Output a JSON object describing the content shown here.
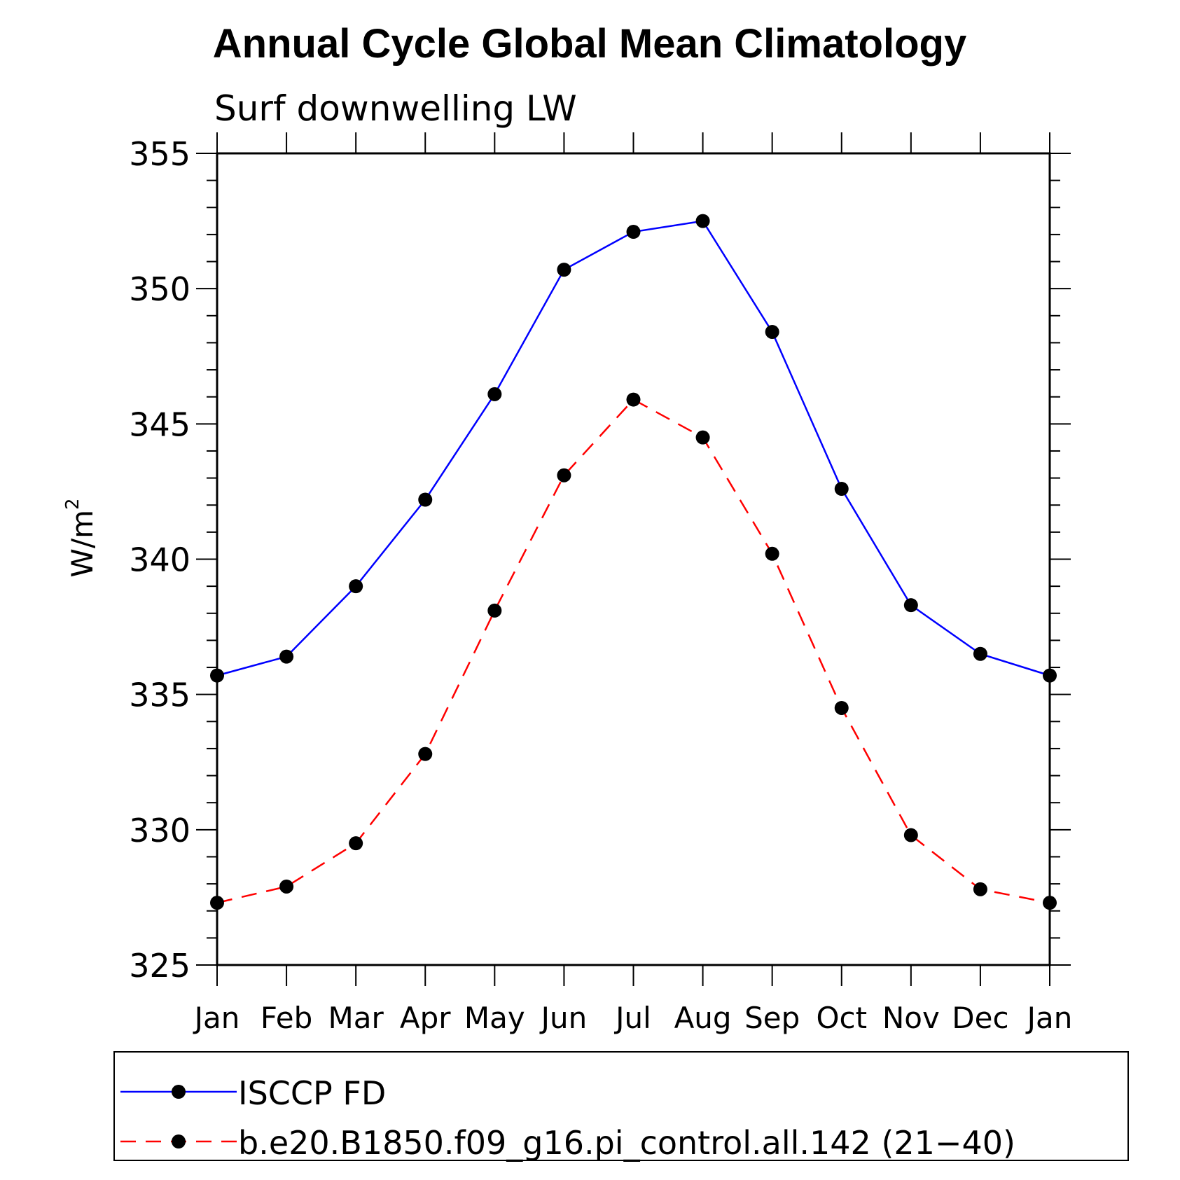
{
  "chart_data": {
    "type": "line",
    "title": "Annual Cycle Global Mean Climatology",
    "subtitle": "Surf downwelling LW",
    "ylabel": "W/m",
    "ylabel_superscript": "2",
    "ylim": [
      325,
      355
    ],
    "yticks": [
      "325",
      "330",
      "335",
      "340",
      "345",
      "350",
      "355"
    ],
    "categories": [
      "Jan",
      "Feb",
      "Mar",
      "Apr",
      "May",
      "Jun",
      "Jul",
      "Aug",
      "Sep",
      "Oct",
      "Nov",
      "Dec",
      "Jan"
    ],
    "grid": false,
    "legend_position": "bottom",
    "series": [
      {
        "name": "ISCCP FD",
        "color": "#0000ff",
        "line_style": "solid",
        "marker": "filled-circle",
        "values": [
          335.7,
          336.4,
          339.0,
          342.2,
          346.1,
          350.7,
          352.1,
          352.5,
          348.4,
          342.6,
          338.3,
          336.5,
          335.7
        ]
      },
      {
        "name": "b.e20.B1850.f09_g16.pi_control.all.142 (21−40)",
        "color": "#ff0000",
        "line_style": "dashed",
        "marker": "filled-circle",
        "values": [
          327.3,
          327.9,
          329.5,
          332.8,
          338.1,
          343.1,
          345.9,
          344.5,
          340.2,
          334.5,
          329.8,
          327.8,
          327.3
        ]
      }
    ]
  }
}
